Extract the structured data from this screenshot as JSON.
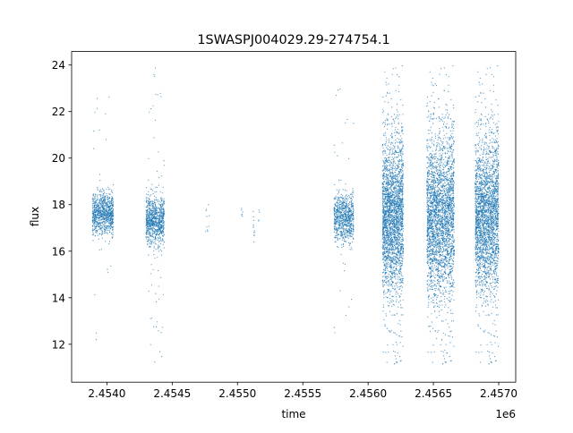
{
  "chart_data": {
    "type": "scatter",
    "title": "1SWASPJ004029.29-274754.1",
    "xlabel": "time",
    "ylabel": "flux",
    "x_offset_label": "1e6",
    "xlim": [
      2453730,
      2457130
    ],
    "ylim": [
      10.37,
      24.58
    ],
    "xticks": [
      2454000,
      2454500,
      2455000,
      2455500,
      2456000,
      2456500,
      2457000
    ],
    "xtick_labels": [
      "2.4540",
      "2.4545",
      "2.4550",
      "2.4555",
      "2.4560",
      "2.4565",
      "2.4570"
    ],
    "yticks": [
      12,
      14,
      16,
      18,
      20,
      22,
      24
    ],
    "ytick_labels": [
      "12",
      "14",
      "16",
      "18",
      "20",
      "22",
      "24"
    ],
    "grid": false,
    "marker_color": "#1f77b4",
    "seasons": [
      {
        "x_start": 2453890,
        "x_end": 2454050,
        "y_center": 17.6,
        "core_spread": 0.45,
        "outlier_range": [
          11.8,
          22.9
        ],
        "n": 900,
        "outlier_frac": 0.04
      },
      {
        "x_start": 2454300,
        "x_end": 2454440,
        "y_center": 17.3,
        "core_spread": 0.5,
        "outlier_range": [
          11.2,
          23.9
        ],
        "n": 900,
        "outlier_frac": 0.05
      },
      {
        "x_start": 2454750,
        "x_end": 2454790,
        "y_center": 17.3,
        "core_spread": 0.3,
        "outlier_range": [
          16.5,
          18.0
        ],
        "n": 10,
        "outlier_frac": 0
      },
      {
        "x_start": 2455030,
        "x_end": 2455040,
        "y_center": 17.7,
        "core_spread": 0.15,
        "outlier_range": [
          17.5,
          18.0
        ],
        "n": 6,
        "outlier_frac": 0
      },
      {
        "x_start": 2455120,
        "x_end": 2455130,
        "y_center": 17.0,
        "core_spread": 0.4,
        "outlier_range": [
          16.4,
          17.7
        ],
        "n": 12,
        "outlier_frac": 0
      },
      {
        "x_start": 2455160,
        "x_end": 2455170,
        "y_center": 17.6,
        "core_spread": 0.2,
        "outlier_range": [
          17.3,
          18.0
        ],
        "n": 4,
        "outlier_frac": 0
      },
      {
        "x_start": 2455740,
        "x_end": 2455890,
        "y_center": 17.4,
        "core_spread": 0.5,
        "outlier_range": [
          11.9,
          23.7
        ],
        "n": 800,
        "outlier_frac": 0.03
      },
      {
        "x_start": 2456110,
        "x_end": 2456270,
        "y_center": 17.5,
        "core_spread": 1.6,
        "outlier_range": [
          11.0,
          24.0
        ],
        "n": 2600,
        "outlier_frac": 0.06
      },
      {
        "x_start": 2456450,
        "x_end": 2456660,
        "y_center": 17.5,
        "core_spread": 1.7,
        "outlier_range": [
          11.0,
          24.0
        ],
        "n": 3000,
        "outlier_frac": 0.06
      },
      {
        "x_start": 2456820,
        "x_end": 2457000,
        "y_center": 17.5,
        "core_spread": 1.6,
        "outlier_range": [
          11.0,
          24.0
        ],
        "n": 2600,
        "outlier_frac": 0.06
      }
    ]
  }
}
